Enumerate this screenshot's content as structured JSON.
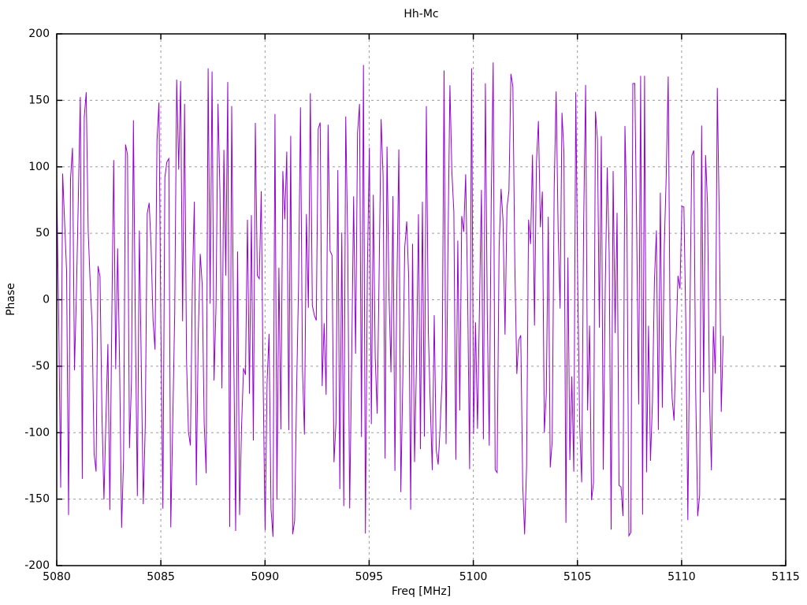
{
  "page": {
    "background": "#ffffff"
  },
  "chart_data": {
    "type": "line",
    "title": "Hh-Mc",
    "xlabel": "Freq [MHz]",
    "ylabel": "Phase",
    "xlim": [
      5080,
      5115
    ],
    "ylim": [
      -200,
      200
    ],
    "xticks": [
      5080,
      5085,
      5090,
      5095,
      5100,
      5105,
      5110,
      5115
    ],
    "yticks": [
      -200,
      -150,
      -100,
      -50,
      0,
      50,
      100,
      150,
      200
    ],
    "grid": true,
    "grid_style": "dashed",
    "legend": "none",
    "colors": {
      "line": "#9400d3",
      "grid": "#9b9b9b",
      "axis": "#000000",
      "text": "#000000",
      "background": "#ffffff"
    },
    "series": [
      {
        "name": "Hh-Mc",
        "color": "#9400d3",
        "x_start": 5080,
        "x_end": 5112,
        "n_points": 340,
        "y_min": -180,
        "y_max": 180,
        "distribution": "uniform",
        "seed": 20240613,
        "description": "Wrapped phase vs frequency: dense uniform random noise spanning -180 to +180 degrees between 5080 and 5112 MHz; exact per-point values are not resolvable from the plot, so points are synthesized deterministically from the seed to match the depicted density and range."
      }
    ]
  }
}
